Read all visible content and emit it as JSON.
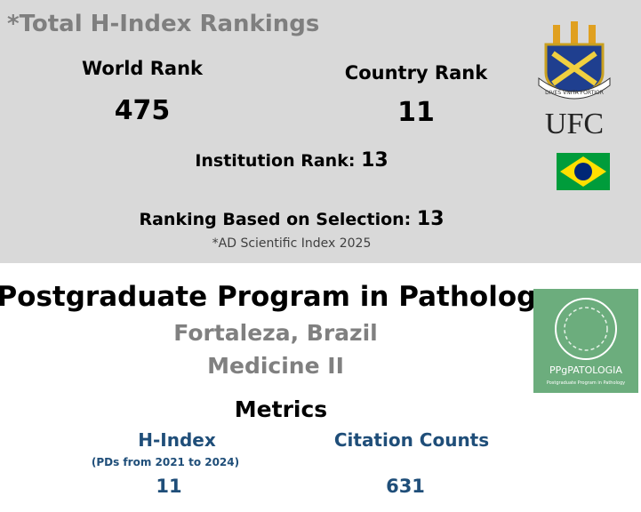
{
  "header": {
    "title": "*Total H-Index Rankings",
    "world_rank": {
      "label": "World Rank",
      "value": 475
    },
    "country_rank": {
      "label": "Country Rank",
      "value": 11
    },
    "institution_rank": {
      "label": "Institution Rank:",
      "value": 13
    },
    "selection_rank": {
      "label": "Ranking Based on Selection:",
      "value": 13
    },
    "source": "*AD Scientific Index 2025",
    "logo": {
      "motto": "DIVES VNITA FORTIOR",
      "name": "UFC"
    }
  },
  "program": {
    "title": "Postgraduate Program in Pathology",
    "location": "Fortaleza, Brazil",
    "area": "Medicine II",
    "logo": {
      "name": "PPgPATOLOGIA",
      "subtitle": "Postgraduate Program in Pathology"
    }
  },
  "metrics": {
    "title": "Metrics",
    "h_index": {
      "label": "H-Index",
      "note": "(PDs from 2021 to 2024)",
      "value": 11
    },
    "citations": {
      "label": "Citation Counts",
      "value": 631
    }
  }
}
